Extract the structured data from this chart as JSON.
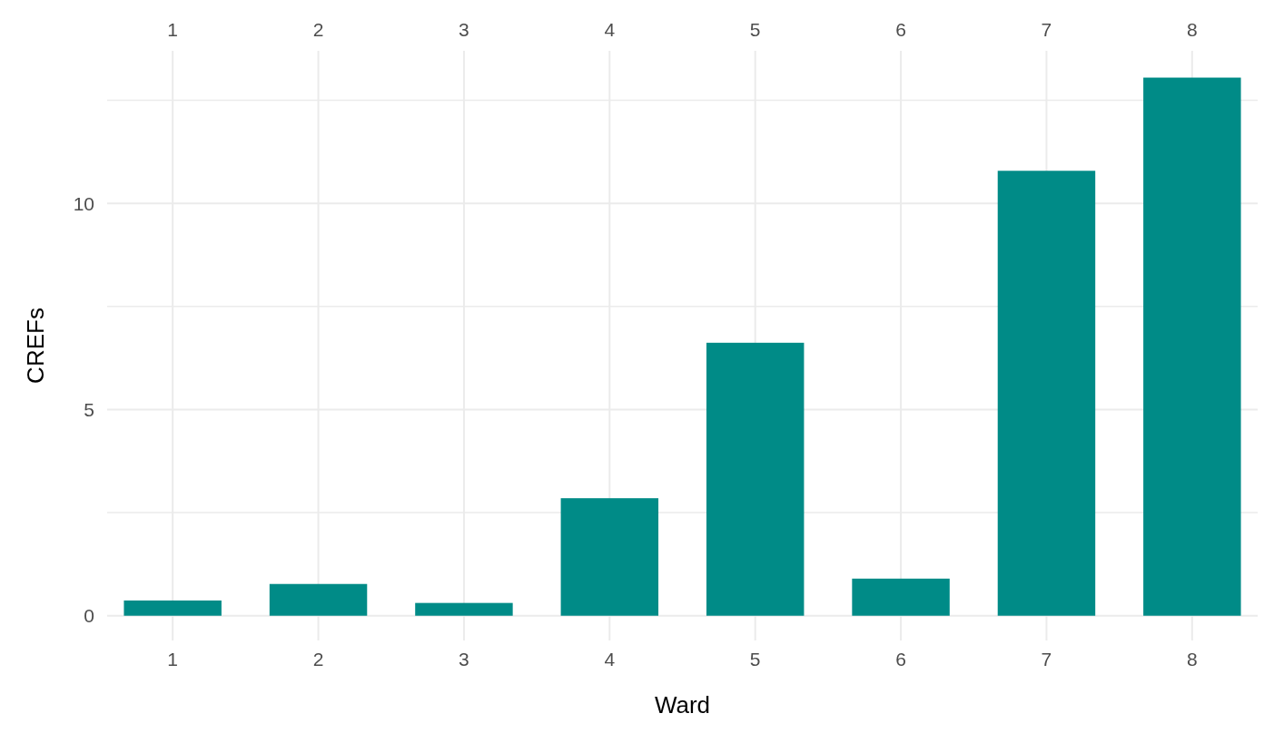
{
  "chart_data": {
    "type": "bar",
    "xlabel": "Ward",
    "ylabel": "CREFs",
    "x": [
      1,
      2,
      3,
      4,
      5,
      6,
      7,
      8
    ],
    "series": [
      {
        "color": "#008b87",
        "values": [
          0.37,
          0.77,
          0.31,
          2.85,
          6.62,
          0.9,
          10.79,
          13.05
        ]
      }
    ],
    "xlim": [
      0.55,
      8.45
    ],
    "xticks": [
      1,
      2,
      3,
      4,
      5,
      6,
      7,
      8
    ],
    "x2lim": [
      0.55,
      8.45
    ],
    "x2ticks": [
      1,
      2,
      3,
      4,
      5,
      6,
      7,
      8
    ],
    "ylim": [
      -0.6,
      13.7
    ],
    "yticks": [
      0,
      {
        "value": 2.5,
        "label": null
      },
      5,
      {
        "value": 7.5,
        "label": null
      },
      10,
      {
        "value": 12.5,
        "label": null
      }
    ],
    "grid": true
  }
}
